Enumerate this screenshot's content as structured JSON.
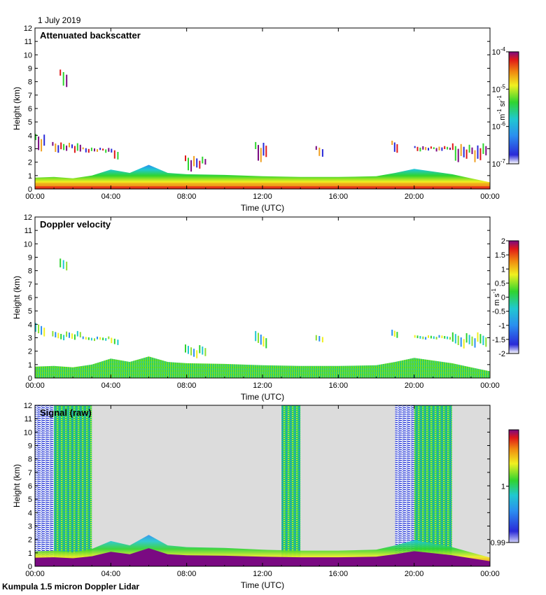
{
  "date_label": "1 July 2019",
  "footer": "Kumpula 1.5 micron Doppler Lidar",
  "chart_data": [
    {
      "type": "heatmap",
      "title": "Attenuated backscatter",
      "xlabel": "Time (UTC)",
      "ylabel": "Height (km)",
      "xlim": [
        0,
        24
      ],
      "ylim": [
        0,
        12
      ],
      "x_ticks": [
        "00:00",
        "04:00",
        "08:00",
        "12:00",
        "16:00",
        "20:00",
        "00:00"
      ],
      "y_ticks": [
        "0",
        "1",
        "2",
        "3",
        "4",
        "5",
        "6",
        "7",
        "8",
        "9",
        "10",
        "11",
        "12"
      ],
      "background": "white",
      "colorbar": {
        "label_base": "m",
        "label_exp1": "-1",
        "label_mid": " sr",
        "label_exp2": "-1",
        "scale": "log",
        "ticks": [
          {
            "value": 0.0001,
            "base": "10",
            "exp": "-4"
          },
          {
            "value": 1e-05,
            "base": "10",
            "exp": "-5"
          },
          {
            "value": 1e-06,
            "base": "10",
            "exp": "-6"
          },
          {
            "value": 1e-07,
            "base": "10",
            "exp": "-7"
          }
        ],
        "range": [
          1e-07,
          0.0001
        ]
      },
      "boundary_layer_top_km": [
        [
          0,
          0.85
        ],
        [
          1,
          0.9
        ],
        [
          2,
          0.8
        ],
        [
          3,
          1.0
        ],
        [
          4,
          1.45
        ],
        [
          5,
          1.2
        ],
        [
          6,
          1.8
        ],
        [
          7,
          1.2
        ],
        [
          8,
          1.1
        ],
        [
          10,
          1.05
        ],
        [
          12,
          0.95
        ],
        [
          14,
          0.9
        ],
        [
          16,
          0.9
        ],
        [
          18,
          0.95
        ],
        [
          19,
          1.2
        ],
        [
          20,
          1.5
        ],
        [
          22,
          1.1
        ],
        [
          23,
          0.8
        ],
        [
          24,
          0.5
        ]
      ],
      "cloud_features": [
        {
          "t0": 1.3,
          "t1": 1.8,
          "h0": 7.6,
          "h1": 8.9
        },
        {
          "t0": 0.0,
          "t1": 0.6,
          "h0": 2.8,
          "h1": 4.1
        },
        {
          "t0": 0.9,
          "t1": 2.5,
          "h0": 2.7,
          "h1": 3.5
        },
        {
          "t0": 2.5,
          "t1": 4.0,
          "h0": 2.7,
          "h1": 3.1
        },
        {
          "t0": 4.0,
          "t1": 4.5,
          "h0": 2.2,
          "h1": 3.0
        },
        {
          "t0": 7.9,
          "t1": 9.1,
          "h0": 1.3,
          "h1": 2.5
        },
        {
          "t0": 11.6,
          "t1": 12.3,
          "h0": 2.0,
          "h1": 3.5
        },
        {
          "t0": 14.8,
          "t1": 15.3,
          "h0": 2.4,
          "h1": 3.2
        },
        {
          "t0": 18.8,
          "t1": 19.2,
          "h0": 2.7,
          "h1": 3.6
        },
        {
          "t0": 20.0,
          "t1": 22.0,
          "h0": 2.8,
          "h1": 3.2
        },
        {
          "t0": 22.0,
          "t1": 23.9,
          "h0": 2.0,
          "h1": 3.4
        }
      ]
    },
    {
      "type": "heatmap",
      "title": "Doppler velocity",
      "xlabel": "Time (UTC)",
      "ylabel": "Height (km)",
      "xlim": [
        0,
        24
      ],
      "ylim": [
        0,
        12
      ],
      "x_ticks": [
        "00:00",
        "04:00",
        "08:00",
        "12:00",
        "16:00",
        "20:00",
        "00:00"
      ],
      "y_ticks": [
        "0",
        "1",
        "2",
        "3",
        "4",
        "5",
        "6",
        "7",
        "8",
        "9",
        "10",
        "11",
        "12"
      ],
      "background": "white",
      "colorbar": {
        "label_base": "m s",
        "label_exp1": "-1",
        "scale": "linear",
        "ticks": [
          "2",
          "1.5",
          "1",
          "0.5",
          "0",
          "-0.5",
          "-1",
          "-1.5",
          "-2"
        ],
        "range": [
          -2,
          2
        ]
      }
    },
    {
      "type": "heatmap",
      "title": "Signal (raw)",
      "xlabel": "Time (UTC)",
      "ylabel": "Height (km)",
      "xlim": [
        0,
        24
      ],
      "ylim": [
        0,
        12
      ],
      "x_ticks": [
        "00:00",
        "04:00",
        "08:00",
        "12:00",
        "16:00",
        "20:00",
        "00:00"
      ],
      "y_ticks": [
        "0",
        "1",
        "2",
        "3",
        "4",
        "5",
        "6",
        "7",
        "8",
        "9",
        "10",
        "11",
        "12"
      ],
      "background": "lightgray",
      "noise_bands": [
        {
          "t0": 0.0,
          "t1": 1.0,
          "kind": "blue"
        },
        {
          "t0": 1.0,
          "t1": 3.0,
          "kind": "green"
        },
        {
          "t0": 13.0,
          "t1": 14.0,
          "kind": "green"
        },
        {
          "t0": 19.0,
          "t1": 20.0,
          "kind": "blue"
        },
        {
          "t0": 20.0,
          "t1": 22.0,
          "kind": "green"
        }
      ],
      "colorbar": {
        "scale": "linear",
        "ticks": [
          "1",
          "0.99"
        ],
        "range": [
          0.99,
          1.01
        ]
      }
    }
  ],
  "colors": {
    "blue": "#1d25e8",
    "green": "#1fd64a",
    "red": "#e8221b",
    "purple": "#7a0a82",
    "gray": "#dcdcdc"
  }
}
